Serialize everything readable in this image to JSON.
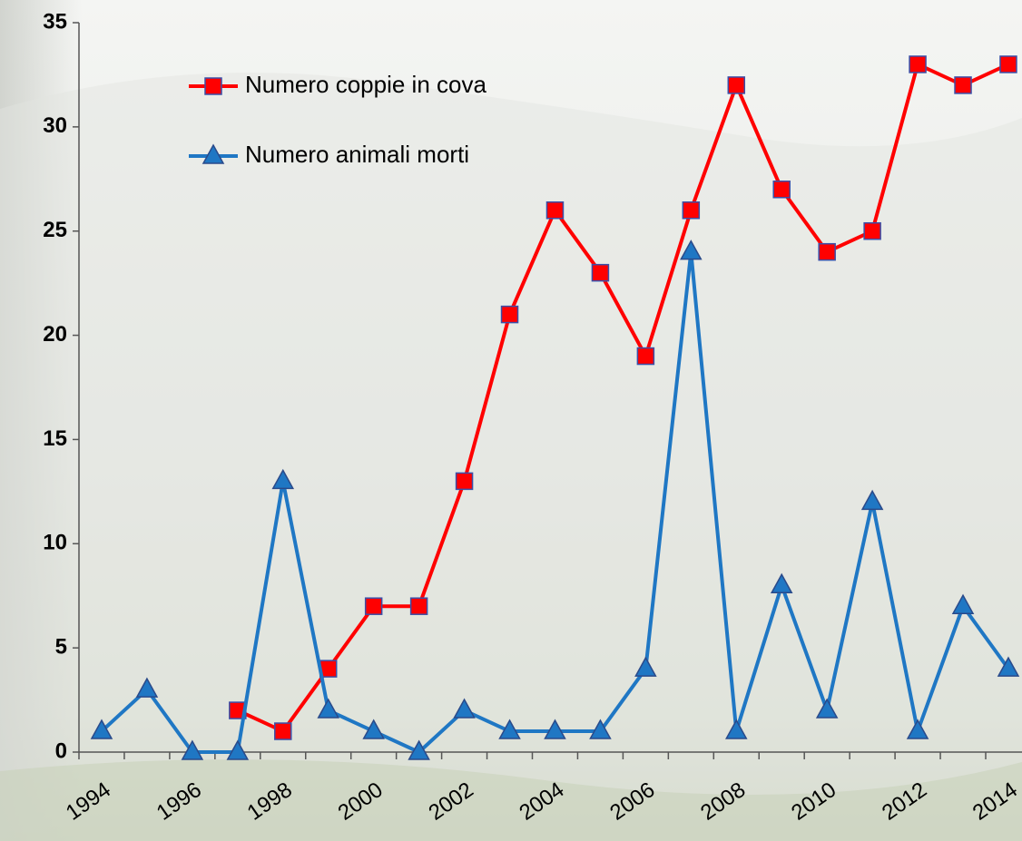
{
  "chart_data": {
    "type": "line",
    "categories": [
      "1994",
      null,
      "1996",
      null,
      "1998",
      null,
      "2000",
      null,
      "2002",
      null,
      "2004",
      null,
      "2006",
      null,
      "2008",
      null,
      "2010",
      null,
      "2012",
      null,
      "2014"
    ],
    "series": [
      {
        "name": "Numero coppie in cova",
        "color": "#ff0000",
        "marker": "square",
        "values": [
          null,
          null,
          null,
          2,
          1,
          4,
          7,
          7,
          13,
          21,
          26,
          23,
          19,
          26,
          32,
          27,
          24,
          25,
          33,
          32,
          33
        ]
      },
      {
        "name": "Numero animali morti",
        "color": "#1f77c4",
        "marker": "triangle",
        "values": [
          1,
          3,
          0,
          0,
          13,
          2,
          1,
          0,
          2,
          1,
          1,
          1,
          4,
          24,
          1,
          8,
          2,
          12,
          1,
          7,
          4
        ]
      }
    ],
    "ylim": [
      0,
      35
    ],
    "yticks": [
      0,
      5,
      10,
      15,
      20,
      25,
      30,
      35
    ]
  }
}
